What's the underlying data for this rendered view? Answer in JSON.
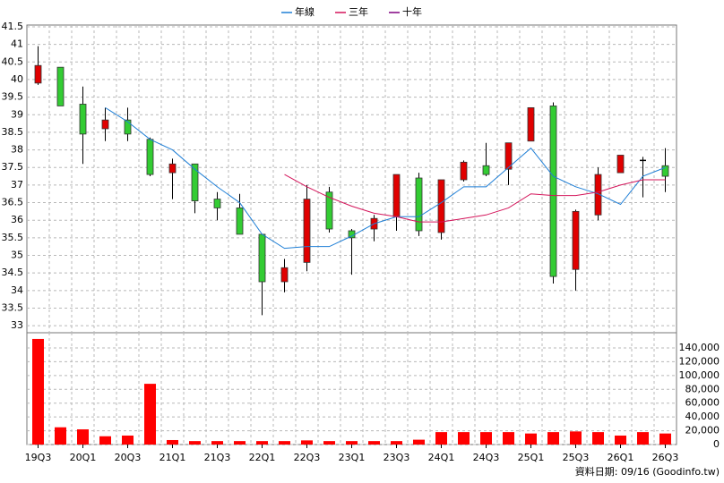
{
  "chart_data": [
    {
      "type": "candlestick",
      "categories": [
        "19Q3",
        null,
        "20Q1",
        null,
        "20Q3",
        null,
        "21Q1",
        null,
        "21Q3",
        null,
        "22Q1",
        null,
        "22Q3",
        null,
        "23Q1",
        null,
        "23Q3",
        null,
        "24Q1",
        null,
        "24Q3",
        null,
        "25Q1",
        null,
        "25Q3",
        null,
        "26Q1",
        null,
        "26Q3"
      ],
      "open": [
        39.9,
        40.35,
        39.3,
        38.6,
        38.85,
        38.3,
        37.35,
        37.6,
        36.6,
        36.35,
        35.6,
        34.25,
        34.8,
        36.8,
        35.7,
        35.75,
        36.1,
        37.2,
        35.65,
        37.15,
        37.55,
        37.45,
        38.25,
        39.25,
        34.6,
        36.15,
        37.35,
        37.7,
        37.55
      ],
      "high": [
        40.95,
        40.35,
        39.8,
        39.2,
        39.2,
        38.35,
        37.75,
        37.6,
        36.8,
        36.75,
        35.6,
        34.9,
        37.0,
        36.95,
        35.75,
        36.15,
        37.3,
        37.35,
        37.15,
        37.7,
        38.2,
        38.2,
        39.2,
        39.35,
        36.3,
        37.5,
        37.85,
        37.8,
        38.05
      ],
      "low": [
        39.85,
        39.25,
        37.6,
        38.25,
        38.25,
        37.25,
        36.6,
        36.2,
        36.0,
        35.6,
        33.3,
        33.95,
        34.55,
        35.65,
        34.45,
        35.4,
        35.7,
        35.55,
        35.45,
        37.1,
        37.25,
        37.0,
        38.25,
        34.2,
        34.0,
        36.0,
        37.35,
        36.65,
        36.8
      ],
      "close": [
        40.4,
        39.25,
        38.45,
        38.85,
        38.45,
        37.3,
        37.6,
        36.55,
        36.35,
        35.6,
        34.25,
        34.65,
        36.6,
        35.75,
        35.5,
        36.05,
        37.3,
        35.7,
        37.15,
        37.65,
        37.3,
        38.2,
        39.2,
        34.4,
        36.25,
        37.3,
        37.85,
        37.7,
        37.25
      ],
      "up_color": "#e00000",
      "down_color": "#33cc33",
      "series": [
        {
          "name": "年線",
          "color": "#1f7fd6",
          "values": [
            null,
            null,
            null,
            39.2,
            38.8,
            38.3,
            38.0,
            37.45,
            36.95,
            36.5,
            35.6,
            35.2,
            35.25,
            35.25,
            35.55,
            35.9,
            36.1,
            36.1,
            36.5,
            36.95,
            36.95,
            37.5,
            38.05,
            37.25,
            36.95,
            36.75,
            36.45,
            37.25,
            37.5
          ]
        },
        {
          "name": "三年",
          "color": "#d4145a",
          "values": [
            null,
            null,
            null,
            null,
            null,
            null,
            null,
            null,
            null,
            null,
            null,
            37.3,
            36.95,
            36.65,
            36.4,
            36.2,
            36.1,
            35.95,
            35.95,
            36.05,
            36.15,
            36.35,
            36.75,
            36.7,
            36.7,
            36.8,
            37.0,
            37.15,
            37.15
          ]
        },
        {
          "name": "十年",
          "color": "#800080",
          "values": [
            null,
            null,
            null,
            null,
            null,
            null,
            null,
            null,
            null,
            null,
            null,
            null,
            null,
            null,
            null,
            null,
            null,
            null,
            null,
            null,
            null,
            null,
            null,
            null,
            null,
            null,
            null,
            null,
            null
          ]
        }
      ],
      "ylim": [
        32.8,
        41.55
      ],
      "yticks": [
        33,
        33.5,
        34,
        34.5,
        35,
        35.5,
        36,
        36.5,
        37,
        37.5,
        38,
        38.5,
        39,
        39.5,
        40,
        40.5,
        41,
        41.5
      ],
      "grid": true,
      "annotation": "資料日期: 09/16 (Goodinfo.tw)"
    },
    {
      "type": "bar",
      "values": [
        153000,
        25000,
        22000,
        12000,
        13000,
        88000,
        6500,
        5000,
        5000,
        5000,
        5000,
        5000,
        6000,
        5000,
        5000,
        5000,
        5000,
        7000,
        18000,
        18000,
        18000,
        18000,
        16000,
        18000,
        19000,
        18000,
        13000,
        18000,
        16000
      ],
      "color": "#ff0000",
      "ylim": [
        0,
        162000
      ],
      "yticks": [
        0,
        {
          "value": 20000,
          "label": "20,000"
        },
        {
          "value": 40000,
          "label": "40,000"
        },
        {
          "value": 60000,
          "label": "60,000"
        },
        {
          "value": 80000,
          "label": "80,000"
        },
        {
          "value": 100000,
          "label": "100,000"
        },
        {
          "value": 120000,
          "label": "120,000"
        },
        {
          "value": 140000,
          "label": "140,000"
        }
      ],
      "grid": true
    }
  ]
}
